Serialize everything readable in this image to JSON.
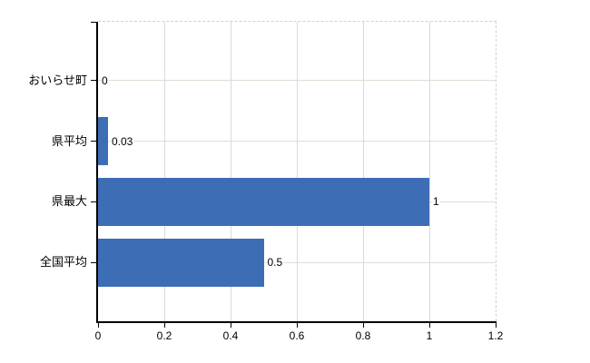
{
  "chart_data": {
    "type": "bar",
    "orientation": "horizontal",
    "title": "",
    "xlabel": "",
    "ylabel": "",
    "categories": [
      "おいらせ町",
      "県平均",
      "県最大",
      "全国平均"
    ],
    "values": [
      0,
      0.03,
      1,
      0.5
    ],
    "value_labels": [
      "0",
      "0.03",
      "1",
      "0.5"
    ],
    "xlim": [
      0,
      1.2
    ],
    "x_ticks": [
      0,
      0.2,
      0.4,
      0.6,
      0.8,
      1,
      1.2
    ],
    "x_tick_labels": [
      "0",
      "0.2",
      "0.4",
      "0.6",
      "0.8",
      "1",
      "1.2"
    ],
    "grid": true,
    "legend_position": "none",
    "colors": {
      "bar": "#3d6db4",
      "vertical_gridline": "#d9d9d9",
      "horizontal_gridline": "#d9e2d6",
      "frame_dashed": "#d9cfcf",
      "axis": "#000000",
      "text": "#000000",
      "background": "#ffffff"
    }
  }
}
